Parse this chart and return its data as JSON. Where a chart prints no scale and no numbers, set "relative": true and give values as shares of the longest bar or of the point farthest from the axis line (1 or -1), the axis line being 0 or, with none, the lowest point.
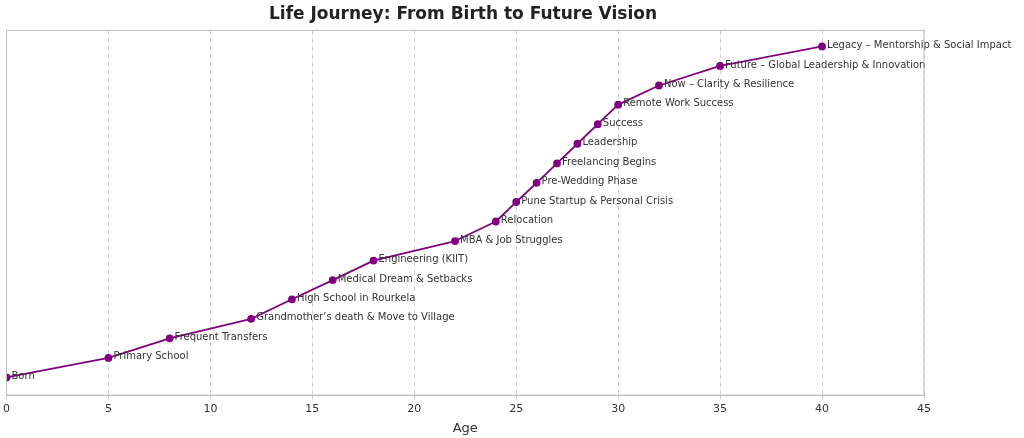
{
  "chart_data": {
    "type": "line",
    "title": "Life Journey: From Birth to Future Vision",
    "xlabel": "Age",
    "relative": true,
    "x": [
      0,
      5,
      8,
      12,
      14,
      16,
      18,
      22,
      24,
      25,
      26,
      27,
      28,
      29,
      30,
      32,
      35,
      40
    ],
    "series": [
      {
        "color": "#800080",
        "values": [
          0.051,
          0.107,
          0.163,
          0.219,
          0.275,
          0.33,
          0.386,
          0.442,
          0.498,
          0.554,
          0.609,
          0.665,
          0.721,
          0.777,
          0.833,
          0.888,
          0.944,
          1
        ]
      }
    ],
    "xlim": [
      0,
      45
    ],
    "xticks": [
      0,
      5,
      10,
      15,
      20,
      25,
      30,
      35,
      40,
      45
    ],
    "grid": "x",
    "marker": "circle",
    "line_style": "solid",
    "legend": false,
    "tick_labels": "x",
    "annotations": [
      {
        "text": "Born",
        "x": 0,
        "y": 0.051
      },
      {
        "text": "Primary School",
        "x": 5,
        "y": 0.107
      },
      {
        "text": "Frequent Transfers",
        "x": 8,
        "y": 0.163
      },
      {
        "text": "Grandmother’s death & Move to Village",
        "x": 12,
        "y": 0.219
      },
      {
        "text": "High School in Rourkela",
        "x": 14,
        "y": 0.275
      },
      {
        "text": "Medical Dream & Setbacks",
        "x": 16,
        "y": 0.33
      },
      {
        "text": "Engineering (KIIT)",
        "x": 18,
        "y": 0.386
      },
      {
        "text": "MBA & Job Struggles",
        "x": 22,
        "y": 0.442
      },
      {
        "text": "Relocation",
        "x": 24,
        "y": 0.498
      },
      {
        "text": "Pune Startup & Personal Crisis",
        "x": 25,
        "y": 0.554
      },
      {
        "text": "Pre-Wedding Phase",
        "x": 26,
        "y": 0.609
      },
      {
        "text": "Freelancing Begins",
        "x": 27,
        "y": 0.665
      },
      {
        "text": "Leadership",
        "x": 28,
        "y": 0.721
      },
      {
        "text": "Success",
        "x": 29,
        "y": 0.777
      },
      {
        "text": "Remote Work Success",
        "x": 30,
        "y": 0.833
      },
      {
        "text": "Now – Clarity & Resilience",
        "x": 32,
        "y": 0.888
      },
      {
        "text": "Future – Global Leadership & Innovation",
        "x": 35,
        "y": 0.944
      },
      {
        "text": "Legacy – Mentorship & Social Impact",
        "x": 40,
        "y": 1
      }
    ]
  }
}
